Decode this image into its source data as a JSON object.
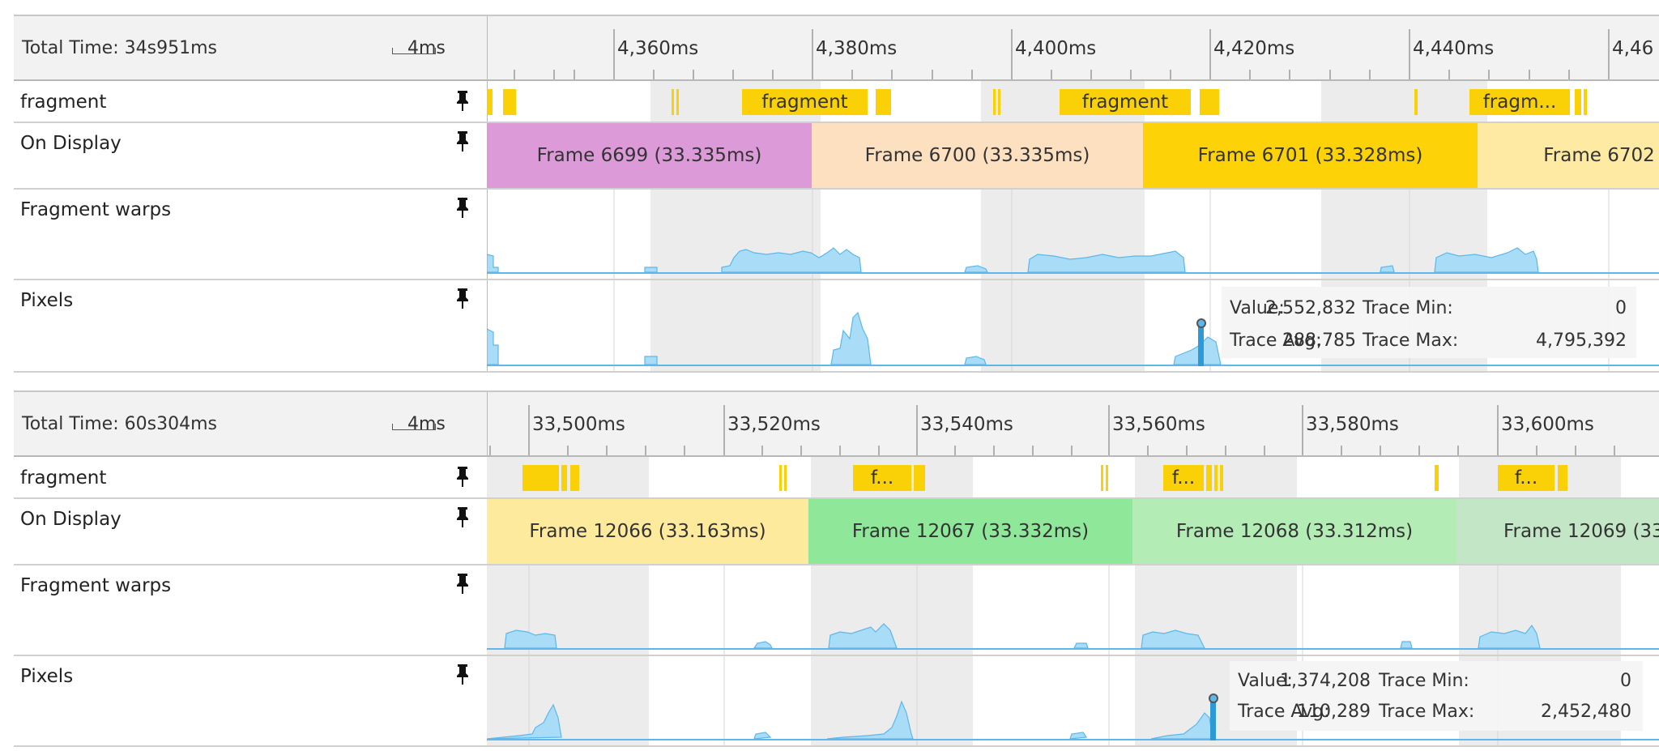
{
  "panels": [
    {
      "total_time": "Total Time: 34s951ms",
      "scale_label": "4ms",
      "ticks": [
        "4,360ms",
        "4,380ms",
        "4,400ms",
        "4,420ms",
        "4,440ms",
        "4,46"
      ],
      "rows": {
        "fragment": "fragment",
        "on_display": "On Display",
        "warps": "Fragment warps",
        "pixels": "Pixels"
      },
      "fragment_labels": [
        "fragment",
        "fragment",
        "fragm..."
      ],
      "frames": [
        {
          "label": "Frame 6699 (33.335ms)",
          "color": "#dd9ad9"
        },
        {
          "label": "Frame 6700 (33.335ms)",
          "color": "#fde0c0"
        },
        {
          "label": "Frame 6701 (33.328ms)",
          "color": "#fdd206"
        },
        {
          "label": "Frame 6702",
          "color": "#feeaa2"
        }
      ],
      "tooltip": {
        "value_label": "Value:",
        "value": "2,552,832",
        "avg_label": "Trace Avg:",
        "avg": "288,785",
        "min_label": "Trace Min:",
        "min": "0",
        "max_label": "Trace Max:",
        "max": "4,795,392"
      }
    },
    {
      "total_time": "Total Time: 60s304ms",
      "scale_label": "4ms",
      "ticks": [
        "33,500ms",
        "33,520ms",
        "33,540ms",
        "33,560ms",
        "33,580ms",
        "33,600ms"
      ],
      "rows": {
        "fragment": "fragment",
        "on_display": "On Display",
        "warps": "Fragment warps",
        "pixels": "Pixels"
      },
      "fragment_labels": [
        "f...",
        "f...",
        "f..."
      ],
      "frames": [
        {
          "label": "Frame 12066 (33.163ms)",
          "color": "#feea9c"
        },
        {
          "label": "Frame 12067 (33.332ms)",
          "color": "#8fe89a"
        },
        {
          "label": "Frame 12068 (33.312ms)",
          "color": "#b4ecb6"
        },
        {
          "label": "Frame 12069 (33",
          "color": "#c3e7c6"
        }
      ],
      "tooltip": {
        "value_label": "Value:",
        "value": "1,374,208",
        "avg_label": "Trace Avg:",
        "avg": "110,289",
        "min_label": "Trace Min:",
        "min": "0",
        "max_label": "Trace Max:",
        "max": "2,452,480"
      }
    }
  ],
  "icons": {
    "pin": "pin-icon",
    "scale": "scale-bar-icon"
  },
  "colors": {
    "fragment": "#f9d106",
    "counter_fill": "#a9dcf7",
    "counter_line": "#5cb8ea",
    "marker": "#2b9ad6",
    "shade": "#ececec"
  }
}
